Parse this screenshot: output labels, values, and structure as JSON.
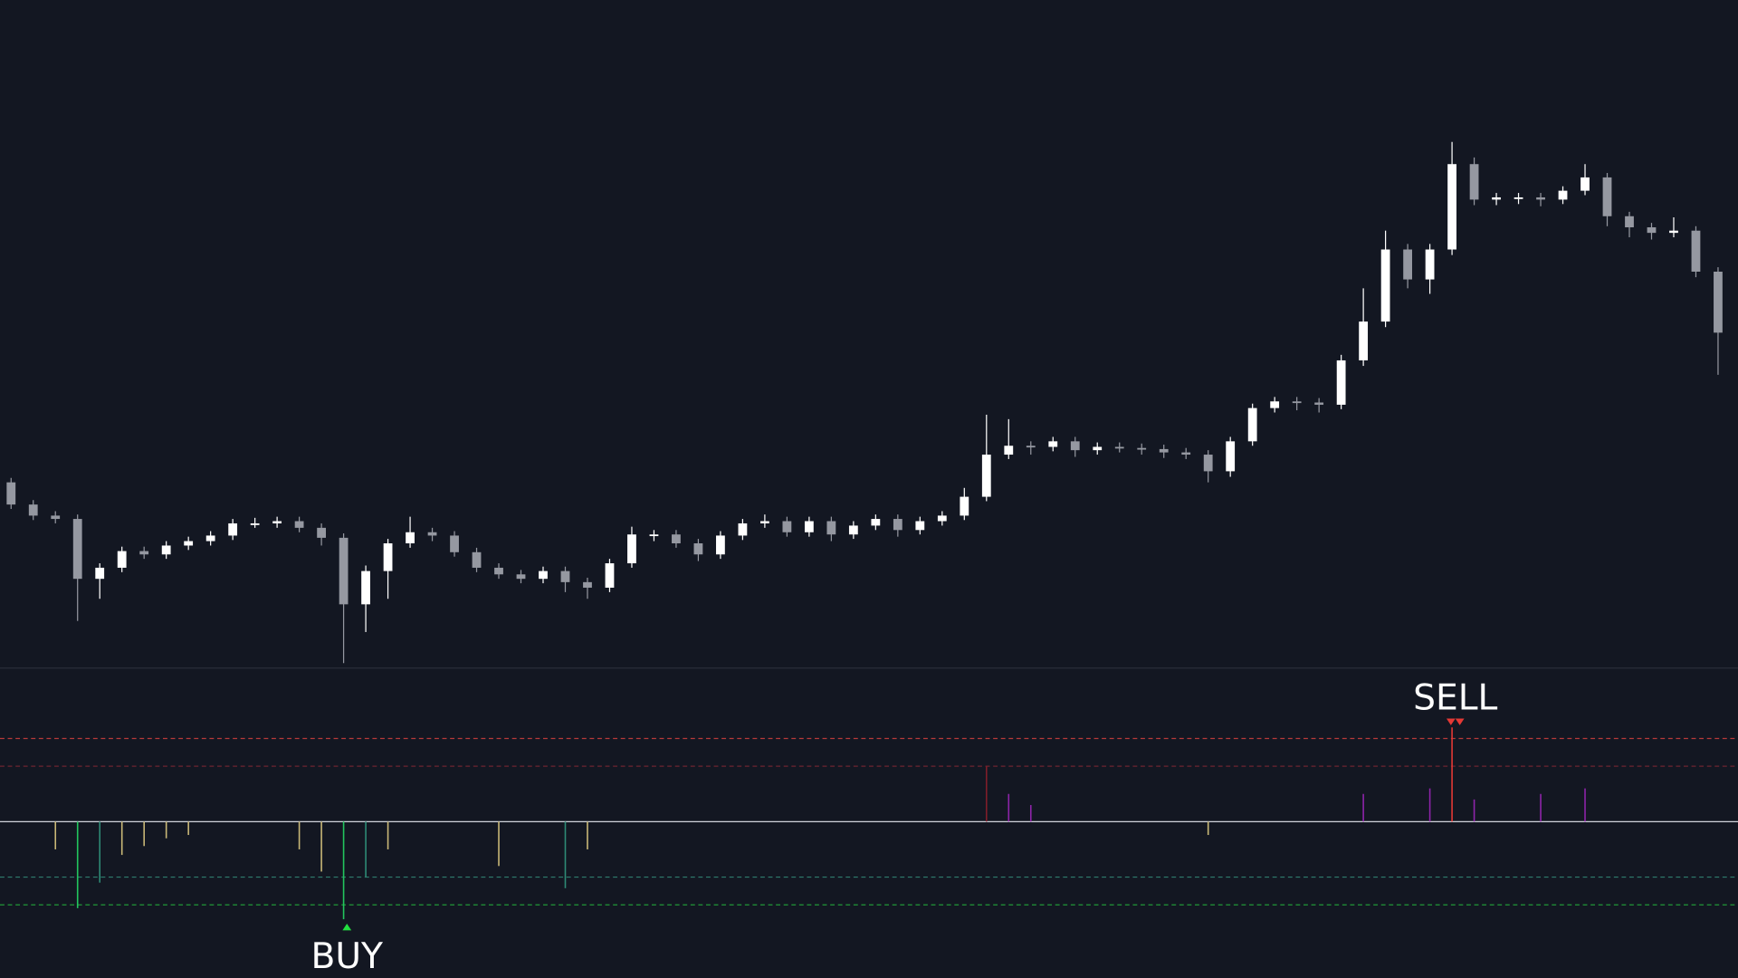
{
  "chart_data": [
    {
      "type": "candlestick",
      "up_color": "#ffffff",
      "down_color": "#9598a1",
      "ylim": [
        0,
        600
      ],
      "open": [
        165,
        145,
        135,
        132,
        78,
        88,
        103,
        100,
        108,
        112,
        117,
        128,
        128,
        130,
        124,
        115,
        55,
        85,
        110,
        120,
        117,
        102,
        88,
        82,
        78,
        85,
        75,
        70,
        92,
        118,
        118,
        110,
        100,
        117,
        128,
        130,
        120,
        130,
        118,
        126,
        132,
        122,
        130,
        135,
        152,
        190,
        198,
        197,
        202,
        194,
        197,
        196,
        195,
        192,
        190,
        175,
        202,
        232,
        238,
        237,
        235,
        275,
        310,
        375,
        348,
        375,
        452,
        420,
        422,
        422,
        420,
        428,
        440,
        405,
        395,
        390,
        392,
        355
      ],
      "high": [
        169,
        149,
        139,
        136,
        92,
        107,
        107,
        112,
        116,
        121,
        132,
        133,
        134,
        134,
        128,
        119,
        90,
        114,
        134,
        124,
        121,
        106,
        92,
        86,
        89,
        89,
        79,
        96,
        125,
        122,
        122,
        114,
        121,
        132,
        136,
        134,
        134,
        134,
        130,
        136,
        136,
        134,
        139,
        160,
        226,
        222,
        202,
        206,
        206,
        201,
        201,
        200,
        199,
        196,
        194,
        206,
        236,
        242,
        242,
        241,
        280,
        340,
        392,
        380,
        380,
        472,
        458,
        426,
        426,
        426,
        432,
        452,
        444,
        409,
        399,
        404,
        396,
        359
      ],
      "low": [
        141,
        131,
        128,
        40,
        60,
        84,
        96,
        96,
        104,
        108,
        113,
        124,
        124,
        120,
        108,
        2,
        30,
        60,
        106,
        112,
        98,
        84,
        78,
        74,
        74,
        66,
        60,
        66,
        88,
        112,
        106,
        94,
        96,
        113,
        124,
        116,
        116,
        112,
        114,
        122,
        116,
        118,
        126,
        131,
        148,
        186,
        190,
        193,
        188,
        190,
        192,
        190,
        187,
        186,
        165,
        170,
        198,
        228,
        230,
        228,
        231,
        270,
        305,
        340,
        335,
        370,
        415,
        415,
        416,
        414,
        416,
        424,
        396,
        386,
        384,
        386,
        350,
        262
      ],
      "close": [
        145,
        135,
        132,
        78,
        88,
        103,
        100,
        108,
        112,
        117,
        128,
        128,
        130,
        124,
        115,
        55,
        85,
        110,
        120,
        117,
        102,
        88,
        82,
        78,
        85,
        75,
        70,
        92,
        118,
        118,
        110,
        100,
        117,
        128,
        130,
        120,
        130,
        118,
        126,
        132,
        122,
        130,
        135,
        152,
        190,
        198,
        197,
        202,
        194,
        197,
        196,
        195,
        192,
        190,
        175,
        202,
        232,
        238,
        237,
        235,
        275,
        310,
        375,
        348,
        375,
        452,
        420,
        422,
        422,
        420,
        428,
        440,
        405,
        395,
        390,
        392,
        355,
        300
      ]
    },
    {
      "type": "bar",
      "ylim": [
        -140,
        140
      ],
      "values": [
        null,
        null,
        -25,
        -78,
        -55,
        -30,
        -22,
        -15,
        -12,
        null,
        null,
        null,
        null,
        -25,
        -45,
        -88,
        -50,
        -25,
        null,
        null,
        null,
        null,
        -40,
        null,
        null,
        -60,
        -25,
        null,
        null,
        null,
        null,
        null,
        null,
        null,
        null,
        null,
        null,
        null,
        null,
        null,
        null,
        null,
        null,
        null,
        50,
        25,
        15,
        null,
        null,
        null,
        null,
        null,
        null,
        null,
        -12,
        null,
        null,
        null,
        null,
        null,
        null,
        25,
        null,
        null,
        30,
        85,
        20,
        null,
        null,
        25,
        null,
        30,
        null,
        null,
        null,
        null,
        null,
        null
      ],
      "color_rules": [
        {
          "from": 75,
          "color": "#e53935"
        },
        {
          "from": 45,
          "color": "#7f1d2a"
        },
        {
          "from": 0,
          "color": "#8e24aa"
        },
        {
          "from": -45,
          "color": "#c9b877"
        },
        {
          "from": -75,
          "color": "#2e8b76"
        },
        {
          "from": -140,
          "color": "#22c55e"
        }
      ],
      "zero_color": "#d1d4dc",
      "levels": [
        {
          "value": 75,
          "color": "#b83a3a"
        },
        {
          "value": 50,
          "color": "#6e2430"
        },
        {
          "value": -50,
          "color": "#2e7d6e"
        },
        {
          "value": -75,
          "color": "#22a83a"
        }
      ],
      "signals": [
        {
          "index": 15,
          "label": "BUY",
          "color": "#22e040"
        },
        {
          "index": 65,
          "label": "SELL",
          "color": "#e53935"
        }
      ]
    }
  ]
}
